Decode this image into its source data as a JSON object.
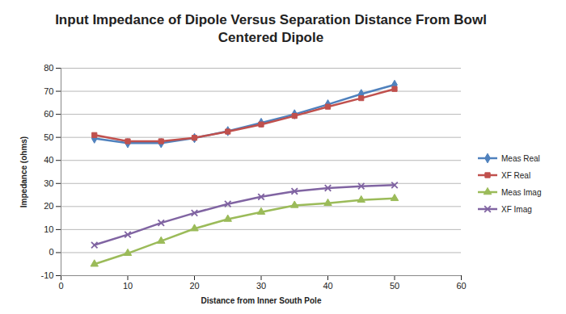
{
  "chart_data": {
    "type": "line",
    "title": "Input Impedance of Dipole Versus Separation Distance From Bowl Centered Dipole",
    "x_label": "Distance from Inner South Pole",
    "y_label": "Impedance (ohms)",
    "x": [
      5,
      10,
      15,
      20,
      25,
      30,
      35,
      40,
      45,
      50
    ],
    "series": [
      {
        "name": "Meas Real",
        "color": "#4f81bd",
        "marker": "diamond",
        "values": [
          49.5,
          47.5,
          47.5,
          49.7,
          52.7,
          56.3,
          60.0,
          64.3,
          68.8,
          72.8
        ]
      },
      {
        "name": "XF Real",
        "color": "#c0504d",
        "marker": "square",
        "values": [
          51.0,
          48.3,
          48.3,
          49.8,
          52.5,
          55.6,
          59.3,
          63.3,
          67.0,
          71.0
        ]
      },
      {
        "name": "Meas Imag",
        "color": "#9bbb59",
        "marker": "triangle",
        "values": [
          -5.0,
          -0.3,
          5.0,
          10.4,
          14.5,
          17.6,
          20.5,
          21.4,
          22.8,
          23.5
        ]
      },
      {
        "name": "XF Imag",
        "color": "#8064a2",
        "marker": "x",
        "values": [
          3.3,
          7.8,
          12.9,
          17.2,
          21.1,
          24.2,
          26.6,
          28.0,
          28.8,
          29.3
        ]
      }
    ],
    "xlim": [
      0,
      60
    ],
    "xticks": [
      0,
      10,
      20,
      30,
      40,
      50,
      60
    ],
    "ylim": [
      -10,
      80
    ],
    "yticks": [
      -10,
      0,
      10,
      20,
      30,
      40,
      50,
      60,
      70,
      80
    ],
    "grid": true,
    "legend": "right"
  }
}
